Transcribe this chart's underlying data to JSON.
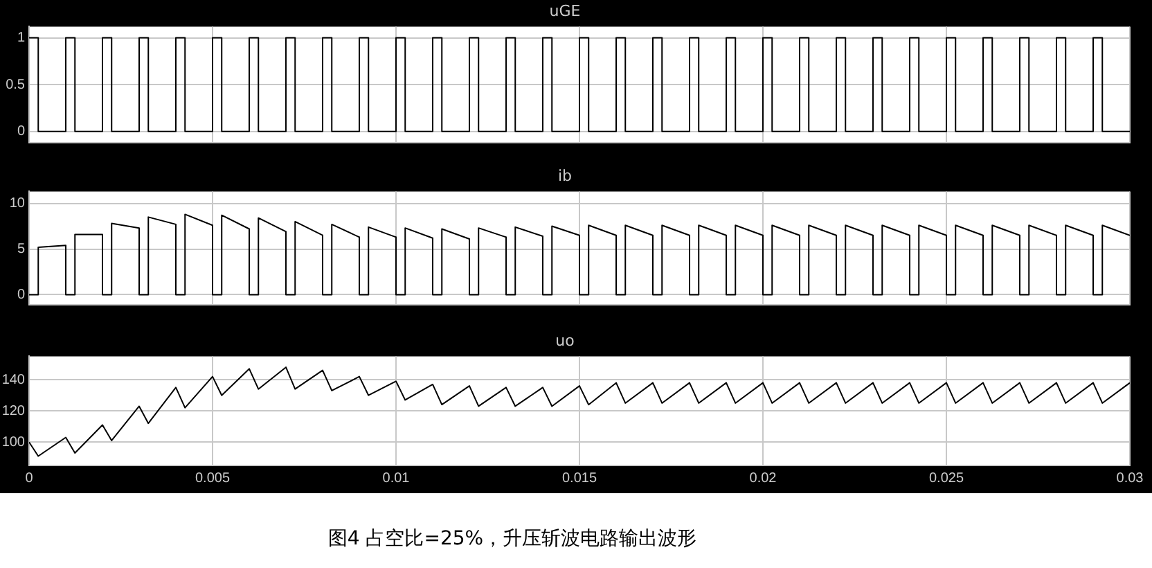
{
  "chart_data": [
    {
      "type": "step",
      "title": "uGE",
      "xlim": [
        0,
        0.03
      ],
      "xticks": [
        0,
        0.005,
        0.01,
        0.015,
        0.02,
        0.025,
        0.03
      ],
      "ylim": [
        -0.12,
        1.12
      ],
      "yticks": [
        0,
        0.5,
        1
      ],
      "grid": true,
      "legend": false,
      "tick_labels": "y",
      "marker": "none",
      "series": [
        {
          "color": "#000000",
          "x": [
            0,
            0.00025,
            0.001,
            0.00125,
            0.002,
            0.00225,
            0.003,
            0.00325,
            0.004,
            0.00425,
            0.005,
            0.00525,
            0.006,
            0.00625,
            0.007,
            0.00725,
            0.008,
            0.00825,
            0.009,
            0.00925,
            0.01,
            0.01025,
            0.011,
            0.01125,
            0.012,
            0.01225,
            0.013,
            0.01325,
            0.014,
            0.01425,
            0.015,
            0.01525,
            0.016,
            0.01625,
            0.017,
            0.01725,
            0.018,
            0.01825,
            0.019,
            0.01925,
            0.02,
            0.02025,
            0.021,
            0.02125,
            0.022,
            0.02225,
            0.023,
            0.02325,
            0.024,
            0.02425,
            0.025,
            0.02525,
            0.026,
            0.02625,
            0.027,
            0.02725,
            0.028,
            0.02825,
            0.029,
            0.02925,
            0.03
          ],
          "values": [
            1,
            0,
            1,
            0,
            1,
            0,
            1,
            0,
            1,
            0,
            1,
            0,
            1,
            0,
            1,
            0,
            1,
            0,
            1,
            0,
            1,
            0,
            1,
            0,
            1,
            0,
            1,
            0,
            1,
            0,
            1,
            0,
            1,
            0,
            1,
            0,
            1,
            0,
            1,
            0,
            1,
            0,
            1,
            0,
            1,
            0,
            1,
            0,
            1,
            0,
            1,
            0,
            1,
            0,
            1,
            0,
            1,
            0,
            1,
            0,
            0
          ]
        }
      ]
    },
    {
      "type": "line",
      "title": "ib",
      "xlim": [
        0,
        0.03
      ],
      "xticks": [
        0,
        0.005,
        0.01,
        0.015,
        0.02,
        0.025,
        0.03
      ],
      "ylim": [
        -1.1,
        11.3
      ],
      "yticks": [
        0,
        5,
        10
      ],
      "grid": true,
      "legend": false,
      "tick_labels": "y",
      "marker": "none",
      "series": [
        {
          "color": "#000000",
          "x": [
            0,
            0.00025,
            0.00025,
            0.001,
            0.001,
            0.00125,
            0.00125,
            0.002,
            0.002,
            0.00225,
            0.00225,
            0.003,
            0.003,
            0.00325,
            0.00325,
            0.004,
            0.004,
            0.00425,
            0.00425,
            0.005,
            0.005,
            0.00525,
            0.00525,
            0.006,
            0.006,
            0.00625,
            0.00625,
            0.007,
            0.007,
            0.00725,
            0.00725,
            0.008,
            0.008,
            0.00825,
            0.00825,
            0.009,
            0.009,
            0.00925,
            0.00925,
            0.01,
            0.01,
            0.01025,
            0.01025,
            0.011,
            0.011,
            0.01125,
            0.01125,
            0.012,
            0.012,
            0.01225,
            0.01225,
            0.013,
            0.013,
            0.01325,
            0.01325,
            0.014,
            0.014,
            0.01425,
            0.01425,
            0.015,
            0.015,
            0.01525,
            0.01525,
            0.016,
            0.016,
            0.01625,
            0.01625,
            0.017,
            0.017,
            0.01725,
            0.01725,
            0.018,
            0.018,
            0.01825,
            0.01825,
            0.019,
            0.019,
            0.01925,
            0.01925,
            0.02,
            0.02,
            0.02025,
            0.02025,
            0.021,
            0.021,
            0.02125,
            0.02125,
            0.022,
            0.022,
            0.02225,
            0.02225,
            0.023,
            0.023,
            0.02325,
            0.02325,
            0.024,
            0.024,
            0.02425,
            0.02425,
            0.025,
            0.025,
            0.02525,
            0.02525,
            0.026,
            0.026,
            0.02625,
            0.02625,
            0.027,
            0.027,
            0.02725,
            0.02725,
            0.028,
            0.028,
            0.02825,
            0.02825,
            0.029,
            0.029,
            0.02925,
            0.02925,
            0.03
          ],
          "values": [
            0,
            0,
            5.2,
            5.4,
            0,
            0,
            6.6,
            6.6,
            0,
            0,
            7.8,
            7.3,
            0,
            0,
            8.5,
            7.7,
            0,
            0,
            8.8,
            7.6,
            0,
            0,
            8.7,
            7.2,
            0,
            0,
            8.4,
            6.9,
            0,
            0,
            8.0,
            6.5,
            0,
            0,
            7.7,
            6.3,
            0,
            0,
            7.4,
            6.3,
            0,
            0,
            7.3,
            6.2,
            0,
            0,
            7.2,
            6.1,
            0,
            0,
            7.3,
            6.3,
            0,
            0,
            7.4,
            6.4,
            0,
            0,
            7.5,
            6.5,
            0,
            0,
            7.6,
            6.5,
            0,
            0,
            7.6,
            6.5,
            0,
            0,
            7.6,
            6.5,
            0,
            0,
            7.6,
            6.5,
            0,
            0,
            7.6,
            6.5,
            0,
            0,
            7.6,
            6.5,
            0,
            0,
            7.6,
            6.5,
            0,
            0,
            7.6,
            6.5,
            0,
            0,
            7.6,
            6.5,
            0,
            0,
            7.6,
            6.5,
            0,
            0,
            7.6,
            6.5,
            0,
            0,
            7.6,
            6.5,
            0,
            0,
            7.6,
            6.5,
            0,
            0,
            7.6,
            6.5,
            0,
            0,
            7.6,
            6.5
          ]
        }
      ]
    },
    {
      "type": "line",
      "title": "uo",
      "xlim": [
        0,
        0.03
      ],
      "xticks": [
        0,
        0.005,
        0.01,
        0.015,
        0.02,
        0.025,
        0.03
      ],
      "ylim": [
        85,
        155
      ],
      "yticks": [
        100,
        120,
        140
      ],
      "grid": true,
      "legend": false,
      "marker": "none",
      "annotations": [
        "图4 占空比=25%，升压斩波电路输出波形"
      ],
      "series": [
        {
          "color": "#000000",
          "x": [
            0,
            0.00025,
            0.001,
            0.00125,
            0.002,
            0.00225,
            0.003,
            0.00325,
            0.004,
            0.00425,
            0.005,
            0.00525,
            0.006,
            0.00625,
            0.007,
            0.00725,
            0.008,
            0.00825,
            0.009,
            0.00925,
            0.01,
            0.01025,
            0.011,
            0.01125,
            0.012,
            0.01225,
            0.013,
            0.01325,
            0.014,
            0.01425,
            0.015,
            0.01525,
            0.016,
            0.01625,
            0.017,
            0.01725,
            0.018,
            0.01825,
            0.019,
            0.01925,
            0.02,
            0.02025,
            0.021,
            0.02125,
            0.022,
            0.02225,
            0.023,
            0.02325,
            0.024,
            0.02425,
            0.025,
            0.02525,
            0.026,
            0.02625,
            0.027,
            0.02725,
            0.028,
            0.02825,
            0.029,
            0.02925,
            0.03
          ],
          "values": [
            100,
            91,
            103,
            93,
            111,
            101,
            123,
            112,
            135,
            122,
            142,
            130,
            147,
            134,
            148,
            134,
            146,
            133,
            142,
            130,
            139,
            127,
            137,
            124,
            136,
            123,
            135,
            123,
            135,
            123,
            136,
            124,
            138,
            125,
            138,
            125,
            138,
            125,
            138,
            125,
            138,
            125,
            138,
            125,
            138,
            125,
            138,
            125,
            138,
            125,
            138,
            125,
            138,
            125,
            138,
            125,
            138,
            125,
            138,
            125,
            138
          ]
        }
      ]
    }
  ]
}
